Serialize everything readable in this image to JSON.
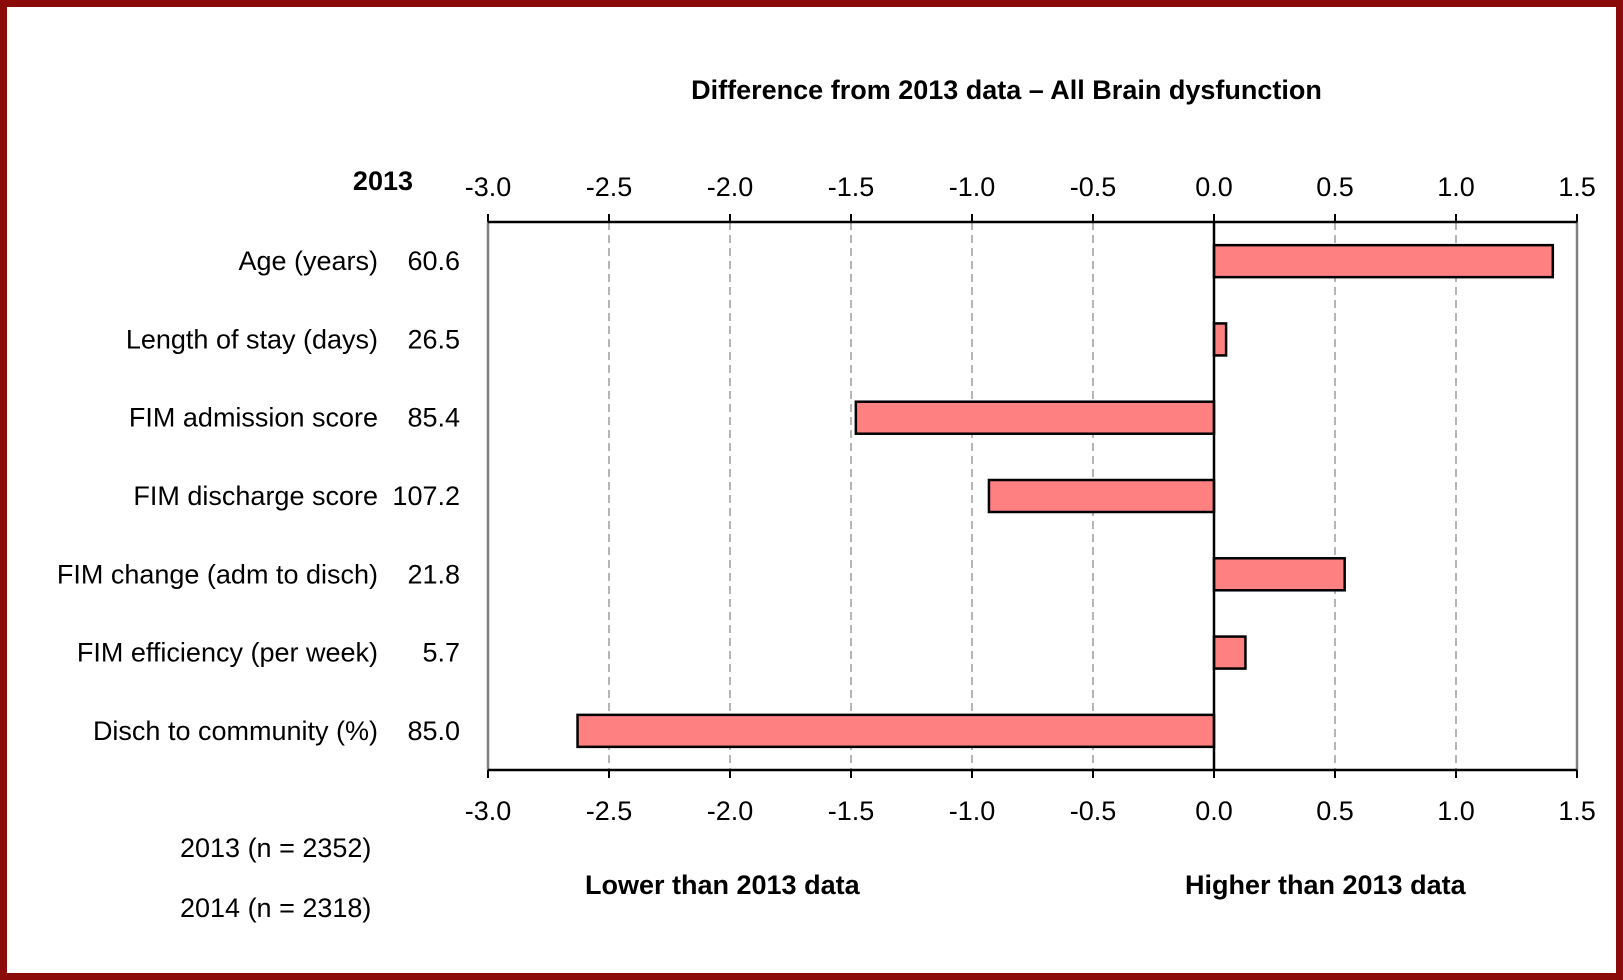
{
  "chart_data": {
    "type": "bar",
    "orientation": "horizontal",
    "title": "Difference from 2013 data – All Brain dysfunction",
    "baseline_header": "2013",
    "categories": [
      "Age (years)",
      "Length of stay (days)",
      "FIM admission score",
      "FIM discharge score",
      "FIM change (adm to disch)",
      "FIM efficiency (per week)",
      "Disch to community (%)"
    ],
    "baseline_values": [
      "60.6",
      "26.5",
      "85.4",
      "107.2",
      "21.8",
      "5.7",
      "85.0"
    ],
    "values": [
      1.4,
      0.05,
      -1.48,
      -0.93,
      0.54,
      0.13,
      -2.63
    ],
    "xlim": [
      -3.0,
      1.5
    ],
    "xticks": [
      -3.0,
      -2.5,
      -2.0,
      -1.5,
      -1.0,
      -0.5,
      0.0,
      0.5,
      1.0,
      1.5
    ],
    "xtick_labels": [
      "-3.0",
      "-2.5",
      "-2.0",
      "-1.5",
      "-1.0",
      "-0.5",
      "0.0",
      "0.5",
      "1.0",
      "1.5"
    ],
    "grid": "vertical dashed",
    "bar_color": "#ff8080",
    "bar_edge_color": "#000000",
    "lower_label": "Lower than 2013 data",
    "higher_label": "Higher than 2013 data",
    "footnotes": [
      "2013  (n = 2352)",
      "2014  (n = 2318)"
    ]
  },
  "frame_color": "#8b0a0a"
}
